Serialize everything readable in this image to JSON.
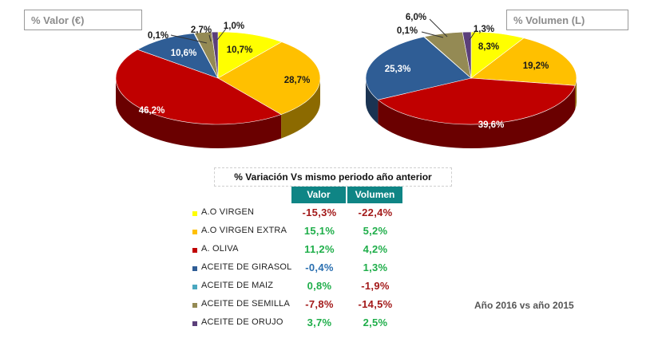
{
  "valor_title": "% Valor (€)",
  "volumen_title": "% Volumen (L)",
  "variation": {
    "title": "% Variación Vs mismo periodo año anterior",
    "col_valor": "Valor",
    "col_volumen": "Volumen",
    "rows": [
      {
        "name": "A.O VIRGEN",
        "color": "#ffff00",
        "valor": "-15,3%",
        "valor_color": "#a31a1a",
        "volumen": "-22,4%",
        "volumen_color": "#a31a1a"
      },
      {
        "name": "A.O VIRGEN EXTRA",
        "color": "#ffc000",
        "valor": "15,1%",
        "valor_color": "#1fae4a",
        "volumen": "5,2%",
        "volumen_color": "#1fae4a"
      },
      {
        "name": "A. OLIVA",
        "color": "#c00000",
        "valor": "11,2%",
        "valor_color": "#1fae4a",
        "volumen": "4,2%",
        "volumen_color": "#1fae4a"
      },
      {
        "name": "ACEITE DE GIRASOL",
        "color": "#2f5d95",
        "valor": "-0,4%",
        "valor_color": "#2a6fb0",
        "volumen": "1,3%",
        "volumen_color": "#1fae4a"
      },
      {
        "name": "ACEITE DE MAIZ",
        "color": "#4aa8c0",
        "valor": "0,8%",
        "valor_color": "#1fae4a",
        "volumen": "-1,9%",
        "volumen_color": "#a31a1a"
      },
      {
        "name": "ACEITE DE SEMILLA",
        "color": "#948a54",
        "valor": "-7,8%",
        "valor_color": "#a31a1a",
        "volumen": "-14,5%",
        "volumen_color": "#a31a1a"
      },
      {
        "name": "ACEITE DE ORUJO",
        "color": "#5b3f7a",
        "valor": "3,7%",
        "valor_color": "#1fae4a",
        "volumen": "2,5%",
        "volumen_color": "#1fae4a"
      }
    ]
  },
  "footnote": "Año 2016 vs año 2015",
  "chart_data": [
    {
      "type": "pie",
      "title": "% Valor (€)",
      "categories": [
        "A.O VIRGEN",
        "A.O VIRGEN EXTRA",
        "A. OLIVA",
        "ACEITE DE GIRASOL",
        "ACEITE DE MAIZ",
        "ACEITE DE SEMILLA",
        "ACEITE DE ORUJO"
      ],
      "values": [
        10.7,
        28.7,
        46.2,
        10.6,
        0.1,
        2.7,
        1.0
      ],
      "labels": [
        "10,7%",
        "28,7%",
        "46,2%",
        "10,6%",
        "0,1%",
        "2,7%",
        "1,0%"
      ],
      "colors": [
        "#ffff00",
        "#ffc000",
        "#c00000",
        "#2f5d95",
        "#4aa8c0",
        "#948a54",
        "#5b3f7a"
      ]
    },
    {
      "type": "pie",
      "title": "% Volumen (L)",
      "categories": [
        "A.O VIRGEN",
        "A.O VIRGEN EXTRA",
        "A. OLIVA",
        "ACEITE DE GIRASOL",
        "ACEITE DE MAIZ",
        "ACEITE DE SEMILLA",
        "ACEITE DE ORUJO"
      ],
      "values": [
        8.3,
        19.2,
        39.6,
        25.3,
        0.1,
        6.0,
        1.3
      ],
      "labels": [
        "8,3%",
        "19,2%",
        "39,6%",
        "25,3%",
        "0,1%",
        "6,0%",
        "1,3%"
      ],
      "colors": [
        "#ffff00",
        "#ffc000",
        "#c00000",
        "#2f5d95",
        "#4aa8c0",
        "#948a54",
        "#5b3f7a"
      ]
    }
  ]
}
